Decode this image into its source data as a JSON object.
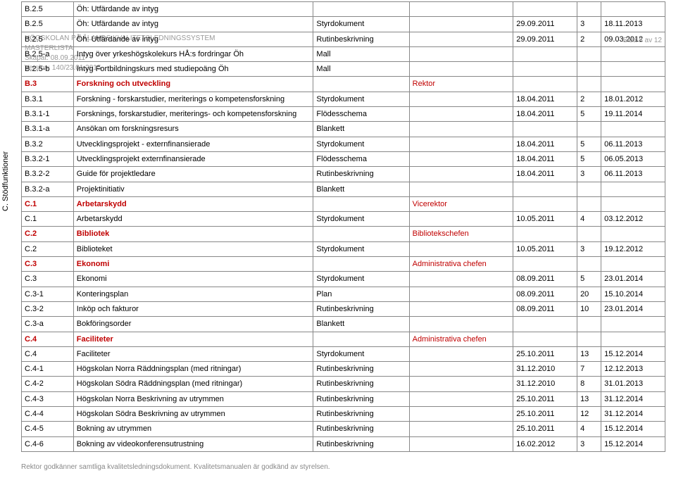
{
  "watermark": {
    "line1": "HÖGSKOLAN PÅ ÅLANDS KVALITETSLEDNINGSSYSTEM",
    "line2": "MASTERLISTA",
    "line3": "Skapat: 08.09.2011",
    "line4": "Version: 140/23.01.2015"
  },
  "pageLabel": "Sida 8 av 12",
  "sidebarLabel": "C. Stödfunktioner",
  "footer": "Rektor godkänner samtliga kvalitetsledningsdokument. Kvalitetsmanualen är godkänd av styrelsen.",
  "rows": [
    {
      "code": "B.2.5",
      "desc": "Öh: Utfärdande av intyg",
      "type": "",
      "role": "",
      "d1": "",
      "rev": "",
      "d2": "",
      "section": false
    },
    {
      "code": "B.2.5",
      "desc": "Öh: Utfärdande av intyg",
      "type": "Styrdokument",
      "role": "",
      "d1": "29.09.2011",
      "rev": "3",
      "d2": "18.11.2013",
      "section": false
    },
    {
      "code": "B.2.5",
      "desc": "Öh: Utfärdande av intyg",
      "type": "Rutinbeskrivning",
      "role": "",
      "d1": "29.09.2011",
      "rev": "2",
      "d2": "09.03.2012",
      "section": false
    },
    {
      "code": "B.2.5-a",
      "desc": "Intyg över yrkeshögskolekurs HÅ:s fordringar Öh",
      "type": "Mall",
      "role": "",
      "d1": "",
      "rev": "",
      "d2": "",
      "section": false
    },
    {
      "code": "B.2.5-b",
      "desc": "Intyg Fortbildningskurs med studiepoäng Öh",
      "type": "Mall",
      "role": "",
      "d1": "",
      "rev": "",
      "d2": "",
      "section": false
    },
    {
      "code": "B.3",
      "desc": "Forskning och utveckling",
      "type": "",
      "role": "Rektor",
      "d1": "",
      "rev": "",
      "d2": "",
      "section": true
    },
    {
      "code": "B.3.1",
      "desc": "Forskning - forskarstudier, meriterings o kompetensforskning",
      "type": "Styrdokument",
      "role": "",
      "d1": "18.04.2011",
      "rev": "2",
      "d2": "18.01.2012",
      "section": false
    },
    {
      "code": "B.3.1-1",
      "desc": "Forsknings, forskarstudier, meriterings- och kompetensforskning",
      "type": "Flödesschema",
      "role": "",
      "d1": "18.04.2011",
      "rev": "5",
      "d2": "19.11.2014",
      "section": false
    },
    {
      "code": "B.3.1-a",
      "desc": "Ansökan om forskningsresurs",
      "type": "Blankett",
      "role": "",
      "d1": "",
      "rev": "",
      "d2": "",
      "section": false
    },
    {
      "code": "B.3.2",
      "desc": "Utvecklingsprojekt - externfinansierade",
      "type": "Styrdokument",
      "role": "",
      "d1": "18.04.2011",
      "rev": "5",
      "d2": "06.11.2013",
      "section": false
    },
    {
      "code": "B.3.2-1",
      "desc": "Utvecklingsprojekt externfinansierade",
      "type": "Flödesschema",
      "role": "",
      "d1": "18.04.2011",
      "rev": "5",
      "d2": "06.05.2013",
      "section": false
    },
    {
      "code": "B.3.2-2",
      "desc": "Guide för projektledare",
      "type": "Rutinbeskrivning",
      "role": "",
      "d1": "18.04.2011",
      "rev": "3",
      "d2": "06.11.2013",
      "section": false
    },
    {
      "code": "B.3.2-a",
      "desc": "Projektinitiativ",
      "type": "Blankett",
      "role": "",
      "d1": "",
      "rev": "",
      "d2": "",
      "section": false
    },
    {
      "code": "C.1",
      "desc": "Arbetarskydd",
      "type": "",
      "role": "Vicerektor",
      "d1": "",
      "rev": "",
      "d2": "",
      "section": true
    },
    {
      "code": "C.1",
      "desc": "Arbetarskydd",
      "type": "Styrdokument",
      "role": "",
      "d1": "10.05.2011",
      "rev": "4",
      "d2": "03.12.2012",
      "section": false
    },
    {
      "code": "C.2",
      "desc": "Bibliotek",
      "type": "",
      "role": "Bibliotekschefen",
      "d1": "",
      "rev": "",
      "d2": "",
      "section": true
    },
    {
      "code": "C.2",
      "desc": "Biblioteket",
      "type": "Styrdokument",
      "role": "",
      "d1": "10.05.2011",
      "rev": "3",
      "d2": "19.12.2012",
      "section": false
    },
    {
      "code": "C.3",
      "desc": "Ekonomi",
      "type": "",
      "role": "Administrativa chefen",
      "d1": "",
      "rev": "",
      "d2": "",
      "section": true
    },
    {
      "code": "C.3",
      "desc": "Ekonomi",
      "type": "Styrdokument",
      "role": "",
      "d1": "08.09.2011",
      "rev": "5",
      "d2": "23.01.2014",
      "section": false
    },
    {
      "code": "C.3-1",
      "desc": "Konteringsplan",
      "type": "Plan",
      "role": "",
      "d1": "08.09.2011",
      "rev": "20",
      "d2": "15.10.2014",
      "section": false
    },
    {
      "code": "C.3-2",
      "desc": "Inköp och fakturor",
      "type": "Rutinbeskrivning",
      "role": "",
      "d1": "08.09.2011",
      "rev": "10",
      "d2": "23.01.2014",
      "section": false
    },
    {
      "code": "C.3-a",
      "desc": "Bokföringsorder",
      "type": "Blankett",
      "role": "",
      "d1": "",
      "rev": "",
      "d2": "",
      "section": false
    },
    {
      "code": "C.4",
      "desc": "Faciliteter",
      "type": "",
      "role": "Administrativa chefen",
      "d1": "",
      "rev": "",
      "d2": "",
      "section": true
    },
    {
      "code": "C.4",
      "desc": "Faciliteter",
      "type": "Styrdokument",
      "role": "",
      "d1": "25.10.2011",
      "rev": "13",
      "d2": "15.12.2014",
      "section": false
    },
    {
      "code": "C.4-1",
      "desc": "Högskolan Norra Räddningsplan (med ritningar)",
      "type": "Rutinbeskrivning",
      "role": "",
      "d1": "31.12.2010",
      "rev": "7",
      "d2": "12.12.2013",
      "section": false
    },
    {
      "code": "C.4-2",
      "desc": "Högskolan Södra Räddningsplan (med ritningar)",
      "type": "Rutinbeskrivning",
      "role": "",
      "d1": "31.12.2010",
      "rev": "8",
      "d2": "31.01.2013",
      "section": false
    },
    {
      "code": "C.4-3",
      "desc": "Högskolan Norra Beskrivning av utrymmen",
      "type": "Rutinbeskrivning",
      "role": "",
      "d1": "25.10.2011",
      "rev": "13",
      "d2": "31.12.2014",
      "section": false
    },
    {
      "code": "C.4-4",
      "desc": "Högskolan Södra Beskrivning av utrymmen",
      "type": "Rutinbeskrivning",
      "role": "",
      "d1": "25.10.2011",
      "rev": "12",
      "d2": "31.12.2014",
      "section": false
    },
    {
      "code": "C.4-5",
      "desc": "Bokning av utrymmen",
      "type": "Rutinbeskrivning",
      "role": "",
      "d1": "25.10.2011",
      "rev": "4",
      "d2": "15.12.2014",
      "section": false
    },
    {
      "code": "C.4-6",
      "desc": "Bokning av videokonferensutrustning",
      "type": "Rutinbeskrivning",
      "role": "",
      "d1": "16.02.2012",
      "rev": "3",
      "d2": "15.12.2014",
      "section": false
    }
  ]
}
